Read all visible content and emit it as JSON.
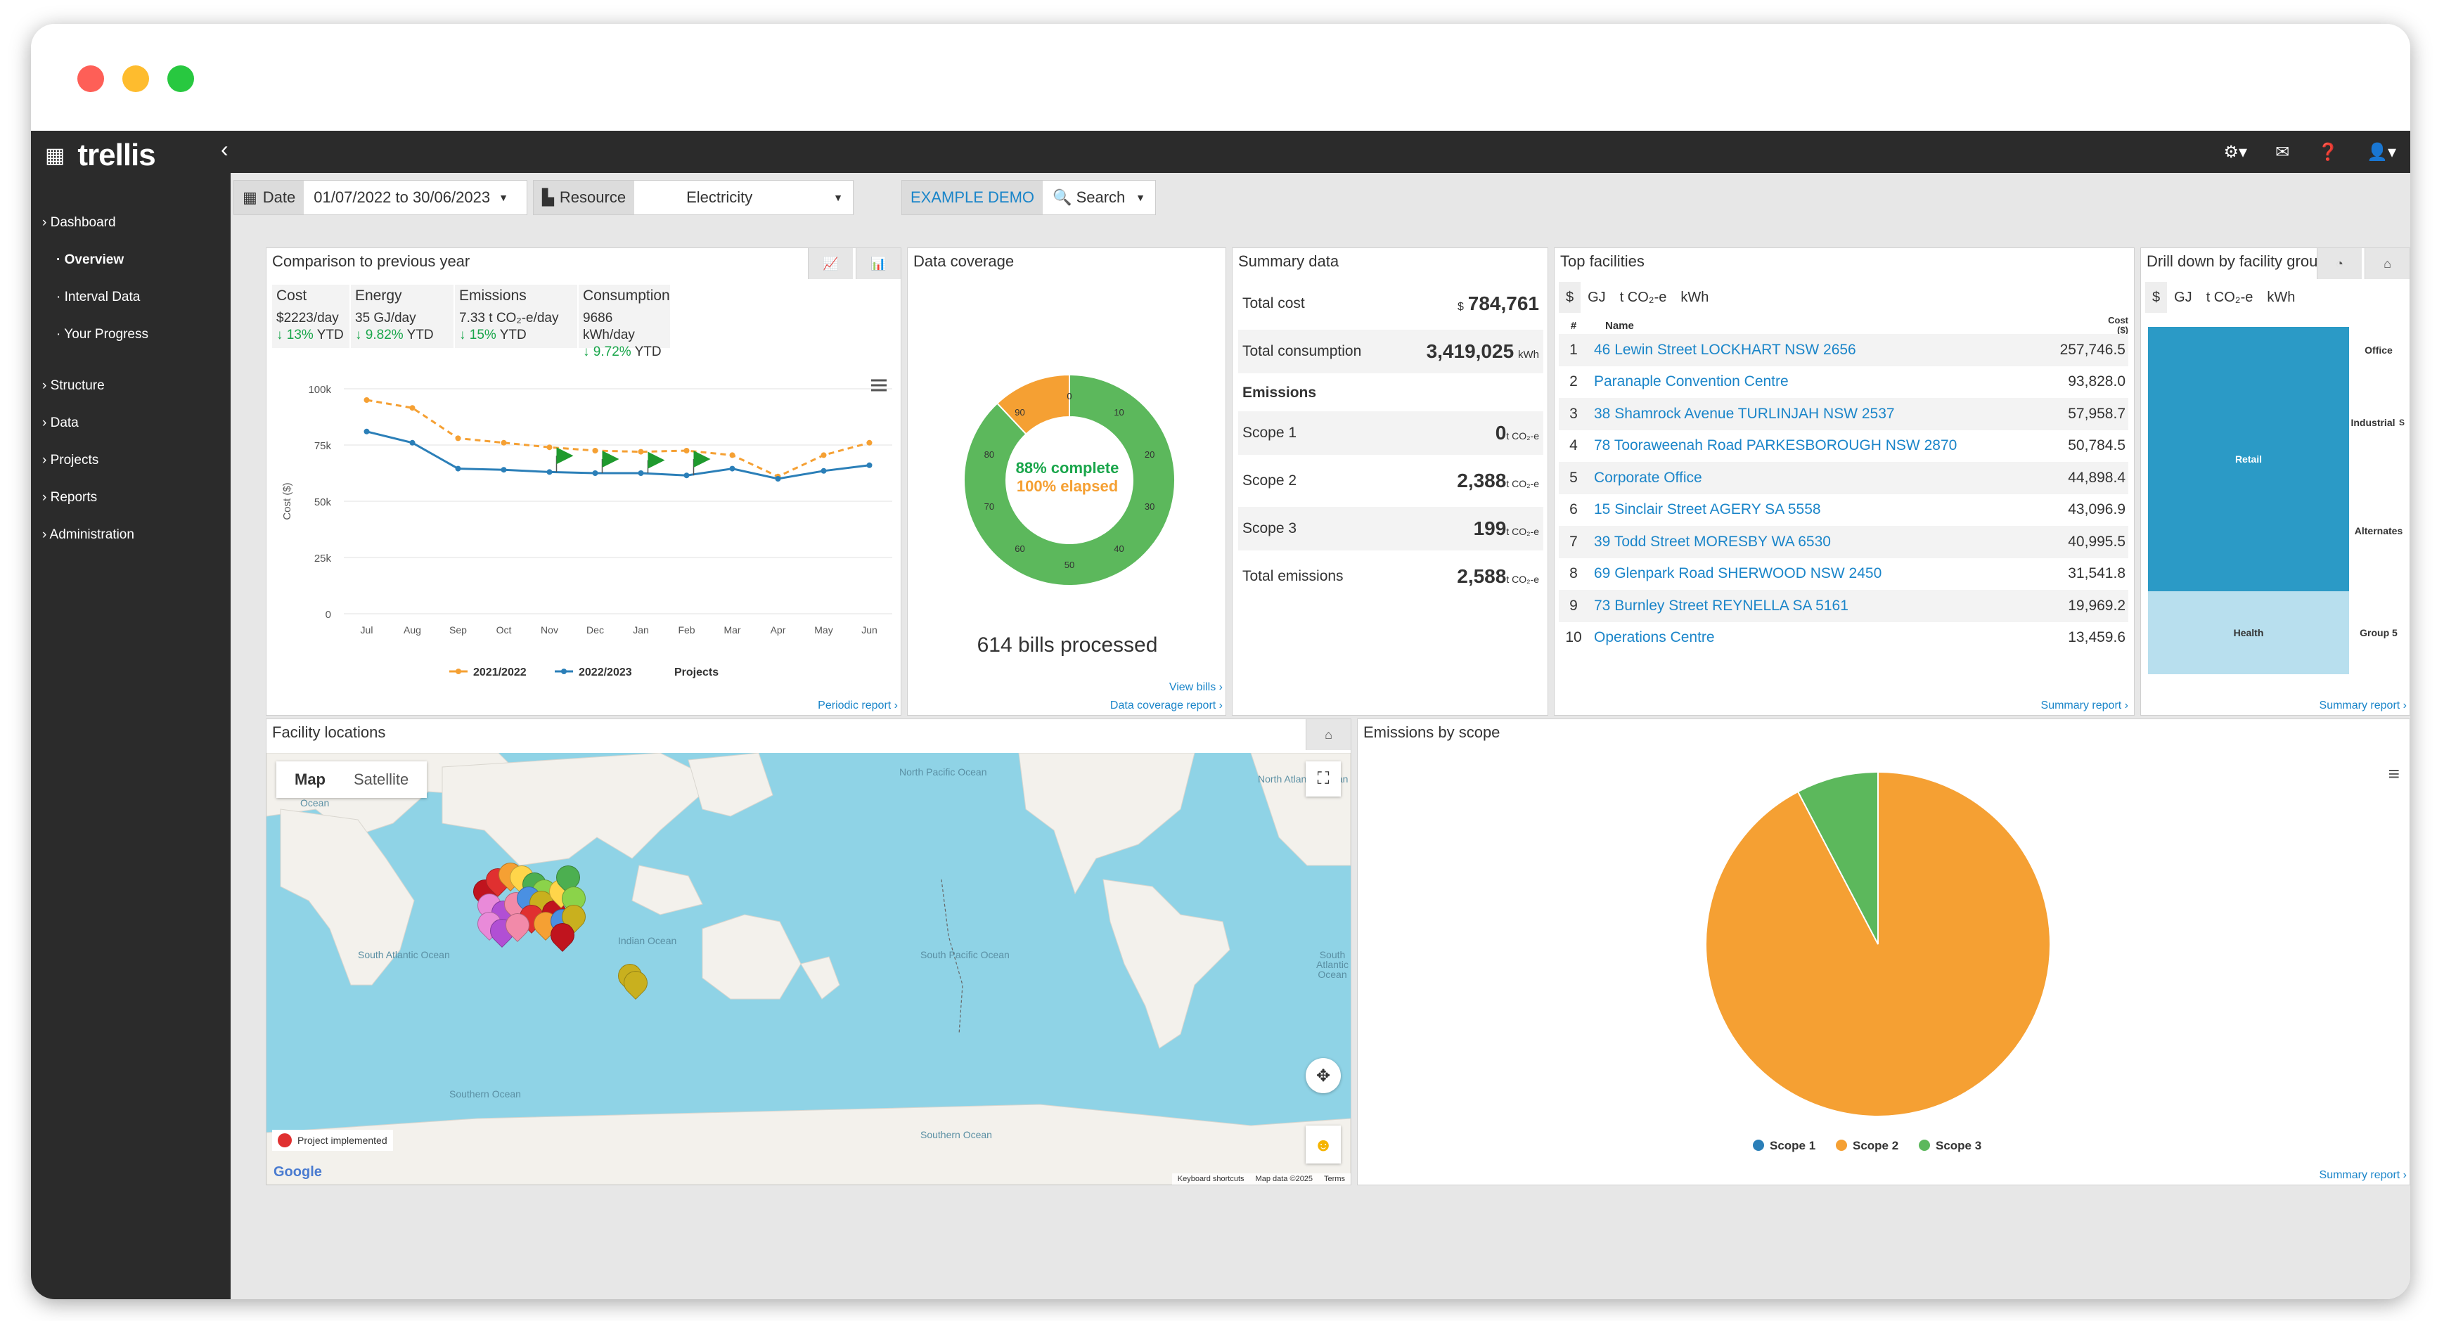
{
  "app": {
    "name": "trellis"
  },
  "nav": [
    {
      "label": "› Dashboard",
      "sub": false,
      "active": false
    },
    {
      "label": "· Overview",
      "sub": true,
      "active": true
    },
    {
      "label": "· Interval Data",
      "sub": true,
      "active": false
    },
    {
      "label": "· Your Progress",
      "sub": true,
      "active": false
    },
    {
      "label": "› Structure",
      "sub": false,
      "active": false
    },
    {
      "label": "› Data",
      "sub": false,
      "active": false
    },
    {
      "label": "› Projects",
      "sub": false,
      "active": false
    },
    {
      "label": "› Reports",
      "sub": false,
      "active": false
    },
    {
      "label": "› Administration",
      "sub": false,
      "active": false
    }
  ],
  "filters": {
    "date_label": "Date",
    "date_value": "01/07/2022 to 30/06/2023",
    "resource_label": "Resource",
    "resource_value": "Electricity",
    "demo_label": "EXAMPLE DEMO",
    "search_label": "Search"
  },
  "comparison": {
    "title": "Comparison to previous year",
    "stats": [
      {
        "head": "Cost",
        "value": "$2223/day",
        "change": "↓ 13%",
        "period": "YTD"
      },
      {
        "head": "Energy",
        "value": "35 GJ/day",
        "change": "↓ 9.82%",
        "period": "YTD"
      },
      {
        "head": "Emissions",
        "value": "7.33 t CO₂-e/day",
        "change": "↓ 15%",
        "period": "YTD"
      },
      {
        "head": "Consumption",
        "value": "9686 kWh/day",
        "change": "↓ 9.72%",
        "period": "YTD"
      }
    ],
    "link": "Periodic report ›"
  },
  "chart_data": [
    {
      "type": "line",
      "ylabel": "Cost ($)",
      "ylim": [
        0,
        100000
      ],
      "yticks": [
        "100k",
        "75k",
        "50k",
        "25k",
        "0"
      ],
      "categories": [
        "Jul",
        "Aug",
        "Sep",
        "Oct",
        "Nov",
        "Dec",
        "Jan",
        "Feb",
        "Mar",
        "Apr",
        "May",
        "Jun"
      ],
      "series": [
        {
          "name": "2021/2022",
          "color": "#f5a033",
          "values": [
            95000,
            91500,
            78000,
            76000,
            74000,
            72500,
            72000,
            72500,
            70500,
            61000,
            70500,
            76000
          ]
        },
        {
          "name": "2022/2023",
          "color": "#2b7fb8",
          "values": [
            81000,
            76000,
            64500,
            64000,
            63000,
            62500,
            62500,
            61500,
            64500,
            60000,
            63500,
            66000
          ]
        }
      ],
      "projects_label": "Projects",
      "legend": "bottom"
    },
    {
      "type": "pie",
      "title": "Emissions by scope",
      "categories": [
        "Scope 1",
        "Scope 2",
        "Scope 3"
      ],
      "values": [
        0,
        2388,
        199
      ],
      "colors": [
        "#2b7fb8",
        "#f5a033",
        "#5cb85c"
      ],
      "legend": "bottom"
    }
  ],
  "coverage": {
    "title": "Data coverage",
    "complete": "88% complete",
    "elapsed": "100% elapsed",
    "complete_fraction": 0.88,
    "ring_labels": [
      "0",
      "10",
      "20",
      "30",
      "40",
      "50",
      "60",
      "70",
      "80",
      "90"
    ],
    "bills": "614 bills processed",
    "link1": "View bills ›",
    "link2": "Data coverage report ›"
  },
  "summary": {
    "title": "Summary data",
    "total_cost_label": "Total cost",
    "total_cost_prefix": "$",
    "total_cost": "784,761",
    "total_consumption_label": "Total consumption",
    "total_consumption": "3,419,025",
    "consumption_unit": "kWh",
    "emissions_head": "Emissions",
    "scopes": [
      {
        "label": "Scope 1",
        "value": "0",
        "unit": "t CO₂-e"
      },
      {
        "label": "Scope 2",
        "value": "2,388",
        "unit": "t CO₂-e"
      },
      {
        "label": "Scope 3",
        "value": "199",
        "unit": "t CO₂-e"
      },
      {
        "label": "Total emissions",
        "value": "2,588",
        "unit": "t CO₂-e"
      }
    ]
  },
  "top_facilities": {
    "title": "Top facilities",
    "units": [
      "$",
      "GJ",
      "t CO₂-e",
      "kWh"
    ],
    "col_num": "#",
    "col_name": "Name",
    "col_cost": "Cost ($)",
    "rows": [
      {
        "n": "1",
        "name": "46 Lewin Street LOCKHART NSW 2656",
        "cost": "257,746.5"
      },
      {
        "n": "2",
        "name": "Paranaple Convention Centre",
        "cost": "93,828.0"
      },
      {
        "n": "3",
        "name": "38 Shamrock Avenue TURLINJAH NSW 2537",
        "cost": "57,958.7"
      },
      {
        "n": "4",
        "name": "78 Tooraweenah Road PARKESBOROUGH NSW 2870",
        "cost": "50,784.5"
      },
      {
        "n": "5",
        "name": "Corporate Office",
        "cost": "44,898.4"
      },
      {
        "n": "6",
        "name": "15 Sinclair Street AGERY SA 5558",
        "cost": "43,096.9"
      },
      {
        "n": "7",
        "name": "39 Todd Street MORESBY WA 6530",
        "cost": "40,995.5"
      },
      {
        "n": "8",
        "name": "69 Glenpark Road SHERWOOD NSW 2450",
        "cost": "31,541.8"
      },
      {
        "n": "9",
        "name": "73 Burnley Street REYNELLA SA 5161",
        "cost": "19,969.2"
      },
      {
        "n": "10",
        "name": "Operations Centre",
        "cost": "13,459.6"
      }
    ],
    "link": "Summary report ›"
  },
  "drilldown": {
    "title": "Drill down by facility group",
    "units": [
      "$",
      "GJ",
      "t CO₂-e",
      "kWh"
    ],
    "labels": [
      "Retail",
      "Health",
      "Office",
      "Industrial",
      "S",
      "Alternates",
      "Group 5"
    ],
    "link": "Summary report ›"
  },
  "map": {
    "title": "Facility locations",
    "tab_map": "Map",
    "tab_satellite": "Satellite",
    "legend": "Project implemented",
    "oceans": [
      "North Pacific Ocean",
      "North Atlantic Ocean",
      "South Pacific Ocean",
      "South Atlantic Ocean",
      "Indian Ocean",
      "South Atlantic Ocean",
      "Southern Ocean",
      "Southern Ocean",
      "Ocean"
    ],
    "footer": [
      "Keyboard shortcuts",
      "Map data ©2025",
      "Terms"
    ],
    "google": "Google"
  },
  "emissions": {
    "title": "Emissions by scope",
    "link": "Summary report ›"
  }
}
